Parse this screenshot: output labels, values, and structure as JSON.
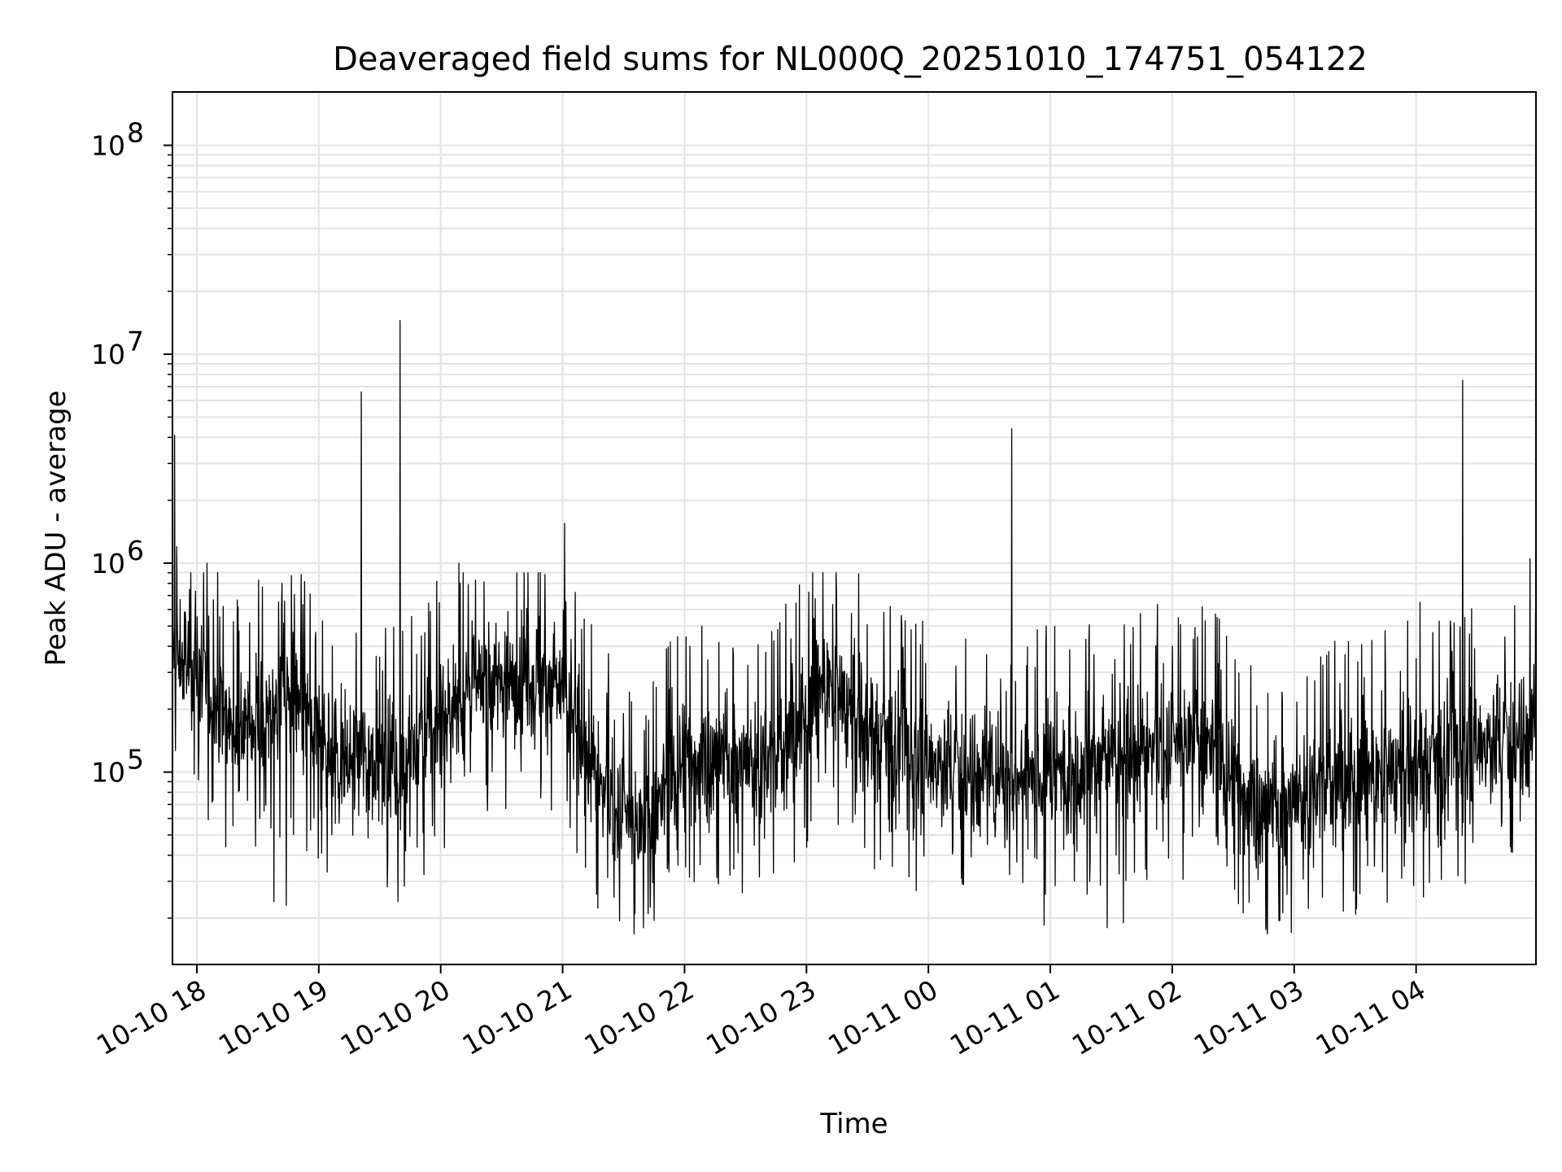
{
  "chart_data": {
    "type": "line",
    "title": "Deaveraged field sums for NL000Q_20251010_174751_054122",
    "xlabel": "Time",
    "ylabel": "Peak ADU - average",
    "x_scale": "time",
    "y_scale": "log",
    "xlim": [
      "2025-10-10T17:48:00",
      "2025-10-11T04:59:00"
    ],
    "ylim": [
      12000,
      180000000
    ],
    "grid": true,
    "legend": "none",
    "line_color": "#000000",
    "grid_color": "#e3e3e3",
    "x_ticks": [
      {
        "t": "2025-10-10T18:00:00",
        "label": "10-10 18"
      },
      {
        "t": "2025-10-10T19:00:00",
        "label": "10-10 19"
      },
      {
        "t": "2025-10-10T20:00:00",
        "label": "10-10 20"
      },
      {
        "t": "2025-10-10T21:00:00",
        "label": "10-10 21"
      },
      {
        "t": "2025-10-10T22:00:00",
        "label": "10-10 22"
      },
      {
        "t": "2025-10-10T23:00:00",
        "label": "10-10 23"
      },
      {
        "t": "2025-10-11T00:00:00",
        "label": "10-11 00"
      },
      {
        "t": "2025-10-11T01:00:00",
        "label": "10-11 01"
      },
      {
        "t": "2025-10-11T02:00:00",
        "label": "10-11 02"
      },
      {
        "t": "2025-10-11T03:00:00",
        "label": "10-11 03"
      },
      {
        "t": "2025-10-11T04:00:00",
        "label": "10-11 04"
      }
    ],
    "y_ticks": [
      {
        "value": 100000,
        "base": "10",
        "exp": "5"
      },
      {
        "value": 1000000,
        "base": "10",
        "exp": "6"
      },
      {
        "value": 10000000,
        "base": "10",
        "exp": "7"
      },
      {
        "value": 100000000,
        "base": "10",
        "exp": "8"
      }
    ],
    "series": [
      {
        "baseline_profile": [
          [
            "2025-10-10T17:48:00",
            350000
          ],
          [
            "2025-10-10T18:00:00",
            320000
          ],
          [
            "2025-10-10T18:20:00",
            150000
          ],
          [
            "2025-10-10T18:45:00",
            230000
          ],
          [
            "2025-10-10T19:10:00",
            110000
          ],
          [
            "2025-10-10T19:45:00",
            120000
          ],
          [
            "2025-10-10T20:15:00",
            250000
          ],
          [
            "2025-10-10T20:45:00",
            300000
          ],
          [
            "2025-10-10T21:00:00",
            250000
          ],
          [
            "2025-10-10T21:20:00",
            80000
          ],
          [
            "2025-10-10T21:40:00",
            50000
          ],
          [
            "2025-10-10T22:00:00",
            120000
          ],
          [
            "2025-10-10T22:45:00",
            110000
          ],
          [
            "2025-10-10T23:10:00",
            280000
          ],
          [
            "2025-10-10T23:30:00",
            160000
          ],
          [
            "2025-10-11T00:00:00",
            110000
          ],
          [
            "2025-10-11T00:45:00",
            95000
          ],
          [
            "2025-10-11T01:30:00",
            120000
          ],
          [
            "2025-10-11T02:15:00",
            140000
          ],
          [
            "2025-10-11T02:45:00",
            65000
          ],
          [
            "2025-10-11T03:15:00",
            85000
          ],
          [
            "2025-10-11T04:00:00",
            110000
          ],
          [
            "2025-10-11T04:59:00",
            160000
          ]
        ],
        "spikes": [
          [
            "2025-10-10T17:49:00",
            4100000
          ],
          [
            "2025-10-10T17:50:00",
            1200000
          ],
          [
            "2025-10-10T18:05:00",
            1000000
          ],
          [
            "2025-10-10T19:21:00",
            6600000
          ],
          [
            "2025-10-10T19:40:00",
            14500000
          ],
          [
            "2025-10-10T20:09:00",
            1000000
          ],
          [
            "2025-10-10T21:01:00",
            1550000
          ],
          [
            "2025-10-11T00:41:00",
            4400000
          ],
          [
            "2025-10-11T04:02:00",
            650000
          ],
          [
            "2025-10-11T04:23:00",
            7500000
          ],
          [
            "2025-10-11T04:56:00",
            1050000
          ]
        ],
        "minima": [
          [
            "2025-10-10T18:38:00",
            24000
          ],
          [
            "2025-10-10T18:44:00",
            23000
          ],
          [
            "2025-10-10T19:39:00",
            24000
          ],
          [
            "2025-10-10T21:42:00",
            21000
          ],
          [
            "2025-10-10T21:45:00",
            19500
          ],
          [
            "2025-10-11T00:57:00",
            18500
          ],
          [
            "2025-10-11T01:28:00",
            18000
          ],
          [
            "2025-10-11T01:36:00",
            19000
          ],
          [
            "2025-10-11T02:53:00",
            19500
          ]
        ]
      }
    ]
  }
}
